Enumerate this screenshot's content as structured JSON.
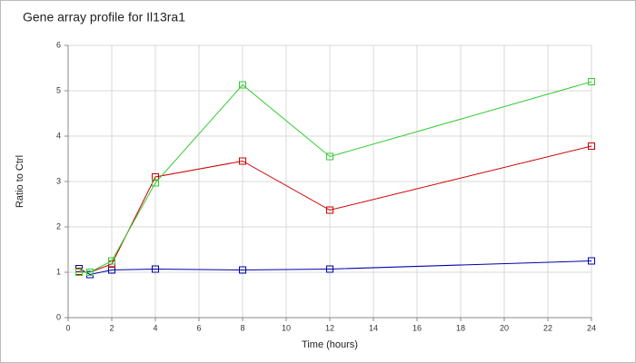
{
  "chart_data": {
    "type": "line",
    "title": "Gene array profile for Il13ra1",
    "x_label": "Time (hours)",
    "y_label": "Ratio to Ctrl",
    "x": [
      0.5,
      1,
      2,
      4,
      8,
      12,
      24
    ],
    "series": [
      {
        "color": "#0000aa",
        "values": [
          1.08,
          0.95,
          1.05,
          1.07,
          1.05,
          1.07,
          1.25
        ]
      },
      {
        "color": "#cc0000",
        "values": [
          1.02,
          1.0,
          1.18,
          3.1,
          3.45,
          2.37,
          3.78
        ]
      },
      {
        "color": "#33cc33",
        "values": [
          1.0,
          1.0,
          1.25,
          2.97,
          5.13,
          3.55,
          5.2
        ]
      }
    ],
    "xlim": [
      0,
      24
    ],
    "xticks": [
      0,
      2,
      4,
      6,
      8,
      10,
      12,
      14,
      16,
      18,
      20,
      22,
      24
    ],
    "ylim": [
      0,
      6
    ],
    "yticks": [
      0,
      1,
      2,
      3,
      4,
      5,
      6
    ],
    "grid": true
  }
}
